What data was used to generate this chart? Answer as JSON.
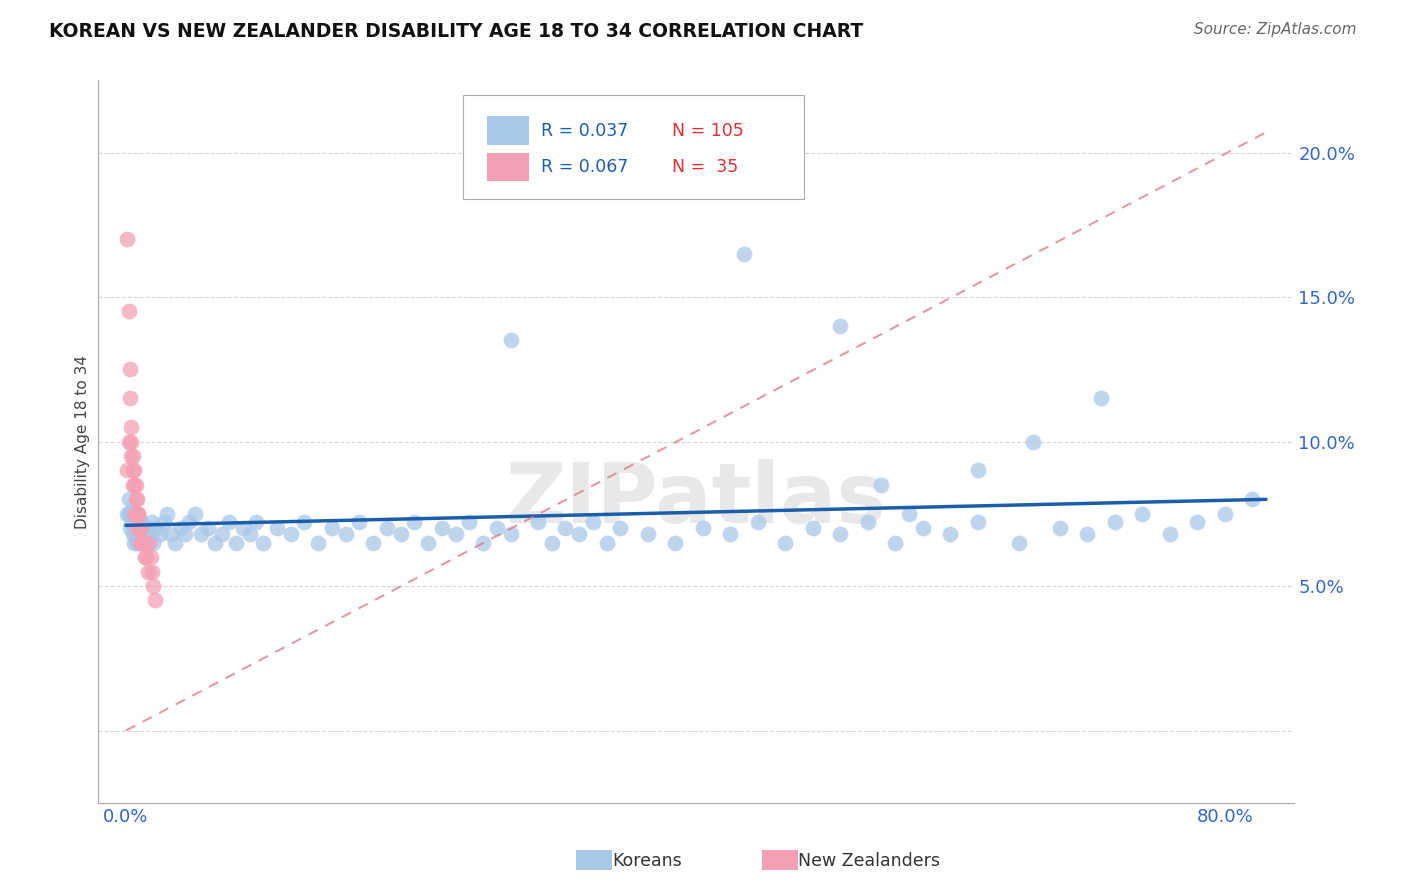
{
  "title": "KOREAN VS NEW ZEALANDER DISABILITY AGE 18 TO 34 CORRELATION CHART",
  "source": "Source: ZipAtlas.com",
  "ylabel_label": "Disability Age 18 to 34",
  "xlim": [
    -0.02,
    0.85
  ],
  "ylim": [
    -0.025,
    0.225
  ],
  "korean_R": 0.037,
  "korean_N": 105,
  "nz_R": 0.067,
  "nz_N": 35,
  "korean_color": "#a8c8e8",
  "korean_line_color": "#1b5eab",
  "nz_color": "#f4a0b4",
  "nz_line_color": "#d87888",
  "background_color": "#ffffff",
  "grid_color": "#cccccc",
  "legend_R_color": "#1b5eab",
  "legend_N_color": "#e03030",
  "korean_x": [
    0.001,
    0.002,
    0.002,
    0.003,
    0.003,
    0.004,
    0.004,
    0.005,
    0.005,
    0.006,
    0.006,
    0.007,
    0.007,
    0.008,
    0.008,
    0.009,
    0.009,
    0.01,
    0.01,
    0.011,
    0.011,
    0.012,
    0.013,
    0.014,
    0.015,
    0.016,
    0.017,
    0.018,
    0.019,
    0.02,
    0.022,
    0.025,
    0.028,
    0.03,
    0.033,
    0.036,
    0.04,
    0.043,
    0.046,
    0.05,
    0.055,
    0.06,
    0.065,
    0.07,
    0.075,
    0.08,
    0.085,
    0.09,
    0.095,
    0.1,
    0.11,
    0.12,
    0.13,
    0.14,
    0.15,
    0.16,
    0.17,
    0.18,
    0.19,
    0.2,
    0.21,
    0.22,
    0.23,
    0.24,
    0.25,
    0.26,
    0.27,
    0.28,
    0.3,
    0.31,
    0.32,
    0.33,
    0.34,
    0.35,
    0.36,
    0.38,
    0.4,
    0.42,
    0.44,
    0.46,
    0.48,
    0.5,
    0.52,
    0.54,
    0.56,
    0.58,
    0.6,
    0.62,
    0.65,
    0.68,
    0.7,
    0.72,
    0.74,
    0.76,
    0.78,
    0.8,
    0.82,
    0.28,
    0.45,
    0.52,
    0.55,
    0.57,
    0.62,
    0.66,
    0.71
  ],
  "korean_y": [
    0.075,
    0.075,
    0.08,
    0.075,
    0.07,
    0.075,
    0.072,
    0.078,
    0.068,
    0.072,
    0.065,
    0.07,
    0.068,
    0.072,
    0.065,
    0.07,
    0.068,
    0.073,
    0.065,
    0.07,
    0.072,
    0.068,
    0.065,
    0.07,
    0.068,
    0.065,
    0.07,
    0.068,
    0.072,
    0.065,
    0.07,
    0.068,
    0.072,
    0.075,
    0.068,
    0.065,
    0.07,
    0.068,
    0.072,
    0.075,
    0.068,
    0.07,
    0.065,
    0.068,
    0.072,
    0.065,
    0.07,
    0.068,
    0.072,
    0.065,
    0.07,
    0.068,
    0.072,
    0.065,
    0.07,
    0.068,
    0.072,
    0.065,
    0.07,
    0.068,
    0.072,
    0.065,
    0.07,
    0.068,
    0.072,
    0.065,
    0.07,
    0.068,
    0.072,
    0.065,
    0.07,
    0.068,
    0.072,
    0.065,
    0.07,
    0.068,
    0.065,
    0.07,
    0.068,
    0.072,
    0.065,
    0.07,
    0.068,
    0.072,
    0.065,
    0.07,
    0.068,
    0.072,
    0.065,
    0.07,
    0.068,
    0.072,
    0.075,
    0.068,
    0.072,
    0.075,
    0.08,
    0.135,
    0.165,
    0.14,
    0.085,
    0.075,
    0.09,
    0.1,
    0.115
  ],
  "nz_x": [
    0.001,
    0.001,
    0.002,
    0.002,
    0.003,
    0.003,
    0.004,
    0.004,
    0.005,
    0.005,
    0.006,
    0.006,
    0.007,
    0.007,
    0.008,
    0.008,
    0.009,
    0.009,
    0.01,
    0.011,
    0.012,
    0.013,
    0.014,
    0.015,
    0.016,
    0.017,
    0.018,
    0.019,
    0.02,
    0.021,
    0.004,
    0.005,
    0.006,
    0.008,
    0.01
  ],
  "nz_y": [
    0.17,
    0.09,
    0.145,
    0.1,
    0.125,
    0.115,
    0.105,
    0.1,
    0.095,
    0.09,
    0.09,
    0.085,
    0.085,
    0.08,
    0.08,
    0.075,
    0.075,
    0.075,
    0.07,
    0.07,
    0.065,
    0.065,
    0.06,
    0.06,
    0.055,
    0.065,
    0.06,
    0.055,
    0.05,
    0.045,
    0.095,
    0.085,
    0.075,
    0.07,
    0.065
  ],
  "korean_line_x0": 0.0,
  "korean_line_x1": 0.83,
  "korean_line_y0": 0.071,
  "korean_line_y1": 0.08,
  "nz_line_x0": 0.0,
  "nz_line_x1": 0.83,
  "nz_line_y0": 0.0,
  "nz_line_y1": 0.207
}
